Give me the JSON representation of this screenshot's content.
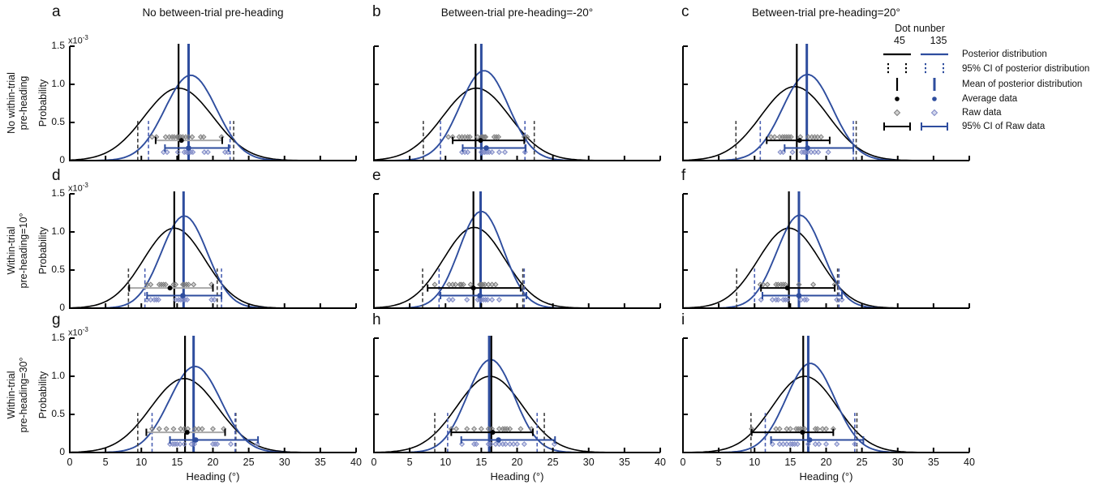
{
  "legend": {
    "title": "Dot nunber",
    "col_headers": [
      "45",
      "135"
    ],
    "entries": [
      {
        "label": "Posterior distribution",
        "glyph": "line"
      },
      {
        "label": "95% CI of posterior distribution",
        "glyph": "dotted"
      },
      {
        "label": "Mean of posterior distribution",
        "glyph": "vline"
      },
      {
        "label": "Average data",
        "glyph": "dot"
      },
      {
        "label": "Raw data",
        "glyph": "diamond"
      },
      {
        "label": "95% CI of Raw data",
        "glyph": "errorbar"
      }
    ]
  },
  "chart_data": {
    "type": "line",
    "xlabel": "Heading (°)",
    "ylabel": "Probability",
    "y_exp_base": "x10",
    "y_exp_sup": "-3",
    "xlim": [
      0,
      40
    ],
    "ylim": [
      0,
      1.5
    ],
    "x_ticks": [
      0,
      5,
      10,
      15,
      20,
      25,
      30,
      35,
      40
    ],
    "y_ticks": [
      "0",
      "0.5",
      "1.0",
      "1.5"
    ],
    "column_titles": [
      "No between-trial pre-heading",
      "Between-trial pre-heading=-20°",
      "Between-trial pre-heading=20°"
    ],
    "row_labels": [
      {
        "line1": "No within-trial",
        "line2": "pre-heading"
      },
      {
        "line1": "Within-trial",
        "line2": "pre-heading=10°"
      },
      {
        "line1": "Within-trial",
        "line2": "pre-heading=30°"
      }
    ],
    "series_names": [
      "45",
      "135"
    ],
    "bar_y": {
      "n45": 0.265,
      "n135": 0.165
    },
    "raw_y": {
      "n45": 0.31,
      "n135": 0.11
    },
    "colors": {
      "black": "#000000",
      "blue": "#2e4d9e",
      "ci_black": "#3f3f3f",
      "ci_blue": "#4b60b3",
      "raw_gray": "#7d7d7d",
      "raw_blue": "#7e89c6",
      "gray_bar": "#a8a8a8"
    },
    "panels": [
      {
        "letter": "a",
        "n45": {
          "curve": {
            "mean": 15.2,
            "sd": 4.8,
            "peak": 0.95
          },
          "mean_line": 15.2,
          "ci": [
            9.5,
            22.9
          ],
          "avg": 15.6,
          "bar": [
            12.0,
            21.3
          ],
          "bar_gray": true,
          "raw": [
            11.5,
            12.1,
            13.4,
            13.9,
            14.3,
            14.6,
            15.0,
            15.2,
            15.5,
            15.8,
            16.2,
            16.6,
            17.1,
            18.3,
            18.7,
            21.2
          ]
        },
        "n135": {
          "curve": {
            "mean": 16.9,
            "sd": 3.6,
            "peak": 1.12
          },
          "mean_line": 16.6,
          "ci": [
            11.0,
            22.4
          ],
          "avg": 16.6,
          "bar": [
            13.3,
            22.2
          ],
          "raw": [
            13.1,
            13.6,
            15.1,
            16.0,
            16.3,
            16.6,
            16.9,
            17.2,
            18.8,
            19.3,
            21.7,
            22.1
          ]
        }
      },
      {
        "letter": "b",
        "n45": {
          "curve": {
            "mean": 14.3,
            "sd": 4.7,
            "peak": 0.95
          },
          "mean_line": 14.2,
          "ci": [
            6.9,
            22.4
          ],
          "avg": 14.9,
          "bar": [
            11.0,
            21.0
          ],
          "raw": [
            10.4,
            11.0,
            11.9,
            12.3,
            12.7,
            13.1,
            13.4,
            14.5,
            15.0,
            15.2,
            15.4,
            15.6,
            16.8,
            17.1,
            17.4,
            21.0,
            21.4
          ]
        },
        "n135": {
          "curve": {
            "mean": 15.4,
            "sd": 3.4,
            "peak": 1.18
          },
          "mean_line": 15.0,
          "ci": [
            9.3,
            21.1
          ],
          "avg": 15.7,
          "bar": [
            12.4,
            21.2
          ],
          "raw": [
            12.3,
            12.7,
            13.1,
            15.0,
            15.3,
            15.5,
            15.8,
            16.1,
            16.5,
            17.5,
            18.3,
            21.1
          ]
        }
      },
      {
        "letter": "c",
        "n45": {
          "curve": {
            "mean": 15.6,
            "sd": 4.7,
            "peak": 0.97
          },
          "mean_line": 15.9,
          "ci": [
            7.4,
            24.2
          ],
          "avg": 16.3,
          "bar": [
            11.7,
            20.5
          ],
          "raw": [
            12.3,
            12.8,
            13.5,
            13.9,
            14.2,
            14.5,
            14.8,
            15.1,
            16.4,
            17.5,
            18.0,
            18.4,
            18.8,
            19.3
          ]
        },
        "n135": {
          "curve": {
            "mean": 17.4,
            "sd": 3.5,
            "peak": 1.13
          },
          "mean_line": 17.3,
          "ci": [
            10.8,
            23.8
          ],
          "avg": 17.4,
          "bar": [
            14.2,
            23.8
          ],
          "raw": [
            13.6,
            14.0,
            15.3,
            16.6,
            16.9,
            17.1,
            17.4,
            17.9,
            18.4,
            18.9,
            20.3
          ]
        }
      },
      {
        "letter": "d",
        "n45": {
          "curve": {
            "mean": 14.6,
            "sd": 4.3,
            "peak": 1.05
          },
          "mean_line": 14.6,
          "ci": [
            8.2,
            20.6
          ],
          "avg": 14.0,
          "bar": [
            8.3,
            20.0
          ],
          "bar_gray": true,
          "raw": [
            10.8,
            11.3,
            12.5,
            12.8,
            13.1,
            13.4,
            14.5,
            14.8,
            15.8,
            16.0,
            16.3,
            16.6,
            17.3,
            19.8
          ]
        },
        "n135": {
          "curve": {
            "mean": 16.0,
            "sd": 3.2,
            "peak": 1.21
          },
          "mean_line": 15.9,
          "ci": [
            10.5,
            21.2
          ],
          "avg": 15.8,
          "bar": [
            10.8,
            21.2
          ],
          "raw": [
            10.8,
            11.3,
            11.8,
            12.1,
            12.4,
            14.8,
            15.2,
            15.5,
            15.8,
            16.1,
            16.4,
            19.8,
            20.2
          ]
        }
      },
      {
        "letter": "e",
        "n45": {
          "curve": {
            "mean": 14.0,
            "sd": 4.3,
            "peak": 1.06
          },
          "mean_line": 13.9,
          "ci": [
            6.8,
            20.8
          ],
          "avg": 13.9,
          "bar": [
            7.5,
            20.5
          ],
          "raw": [
            8.5,
            10.5,
            11.0,
            11.4,
            12.0,
            12.2,
            12.5,
            13.5,
            14.8,
            15.0,
            15.2,
            15.5,
            16.0,
            16.5,
            17.0
          ]
        },
        "n135": {
          "curve": {
            "mean": 15.0,
            "sd": 3.1,
            "peak": 1.27
          },
          "mean_line": 14.9,
          "ci": [
            9.1,
            21.0
          ],
          "avg": 14.8,
          "bar": [
            9.3,
            21.3
          ],
          "raw": [
            10.5,
            11.0,
            13.0,
            14.5,
            14.8,
            15.0,
            15.3,
            15.6,
            15.9,
            16.5,
            17.5
          ]
        }
      },
      {
        "letter": "f",
        "n45": {
          "curve": {
            "mean": 14.8,
            "sd": 4.3,
            "peak": 1.05
          },
          "mean_line": 14.8,
          "ci": [
            7.5,
            21.6
          ],
          "avg": 14.6,
          "bar": [
            10.9,
            21.2
          ],
          "raw": [
            10.8,
            11.2,
            11.8,
            13.0,
            13.3,
            13.7,
            14.0,
            14.3,
            16.2,
            18.2,
            21.2
          ]
        },
        "n135": {
          "curve": {
            "mean": 16.3,
            "sd": 3.2,
            "peak": 1.22
          },
          "mean_line": 16.2,
          "ci": [
            10.0,
            21.8
          ],
          "avg": 16.2,
          "bar": [
            11.1,
            22.2
          ],
          "raw": [
            10.9,
            12.5,
            13.0,
            13.3,
            14.0,
            14.3,
            14.6,
            16.5,
            17.0,
            17.3,
            21.5,
            22.2
          ]
        }
      },
      {
        "letter": "g",
        "n45": {
          "curve": {
            "mean": 16.0,
            "sd": 4.7,
            "peak": 0.97
          },
          "mean_line": 16.1,
          "ci": [
            9.5,
            23.2
          ],
          "avg": 16.4,
          "bar": [
            10.7,
            21.7
          ],
          "bar_gray": true,
          "raw": [
            11.5,
            12.5,
            13.5,
            14.5,
            15.5,
            16.0,
            16.5,
            17.5,
            18.0,
            18.5,
            20.0,
            21.5
          ]
        },
        "n135": {
          "curve": {
            "mean": 17.5,
            "sd": 3.6,
            "peak": 1.13
          },
          "mean_line": 17.3,
          "ci": [
            11.5,
            23.1
          ],
          "avg": 17.6,
          "bar": [
            14.0,
            26.3
          ],
          "raw": [
            14.0,
            14.4,
            14.7,
            15.0,
            15.4,
            16.0,
            17.0,
            17.4,
            20.0,
            20.3,
            20.6,
            22.5,
            26.2
          ]
        }
      },
      {
        "letter": "h",
        "n45": {
          "curve": {
            "mean": 16.2,
            "sd": 4.6,
            "peak": 1.0
          },
          "mean_line": 16.4,
          "ci": [
            8.5,
            23.8
          ],
          "avg": 16.6,
          "bar": [
            10.8,
            22.2
          ],
          "raw": [
            10.8,
            11.5,
            13.0,
            14.0,
            15.0,
            16.0,
            16.5,
            17.5,
            18.0,
            18.3,
            18.6,
            19.0,
            20.5,
            22.0
          ]
        },
        "n135": {
          "curve": {
            "mean": 16.3,
            "sd": 3.3,
            "peak": 1.22
          },
          "mean_line": 16.1,
          "ci": [
            10.3,
            22.8
          ],
          "avg": 17.4,
          "bar": [
            12.2,
            25.3
          ],
          "raw": [
            12.3,
            14.0,
            14.3,
            16.0,
            16.3,
            17.0,
            17.5,
            18.0,
            18.4,
            19.0,
            19.5,
            20.0,
            21.0,
            25.2
          ]
        }
      },
      {
        "letter": "i",
        "n45": {
          "curve": {
            "mean": 17.0,
            "sd": 4.5,
            "peak": 1.0
          },
          "mean_line": 16.8,
          "ci": [
            9.5,
            24.3
          ],
          "avg": 16.7,
          "bar": [
            9.6,
            21.0
          ],
          "raw": [
            9.6,
            13.0,
            13.5,
            14.5,
            15.0,
            15.8,
            16.1,
            16.4,
            16.7,
            17.0,
            18.5,
            18.8,
            19.5,
            20.0,
            21.0
          ]
        },
        "n135": {
          "curve": {
            "mean": 17.8,
            "sd": 3.4,
            "peak": 1.17
          },
          "mean_line": 17.5,
          "ci": [
            11.5,
            24.0
          ],
          "avg": 17.7,
          "bar": [
            12.3,
            25.2
          ],
          "raw": [
            12.5,
            13.5,
            14.0,
            14.5,
            15.0,
            15.3,
            15.6,
            16.0,
            17.5,
            18.5,
            19.0,
            20.0,
            21.5,
            24.0
          ]
        }
      }
    ]
  }
}
